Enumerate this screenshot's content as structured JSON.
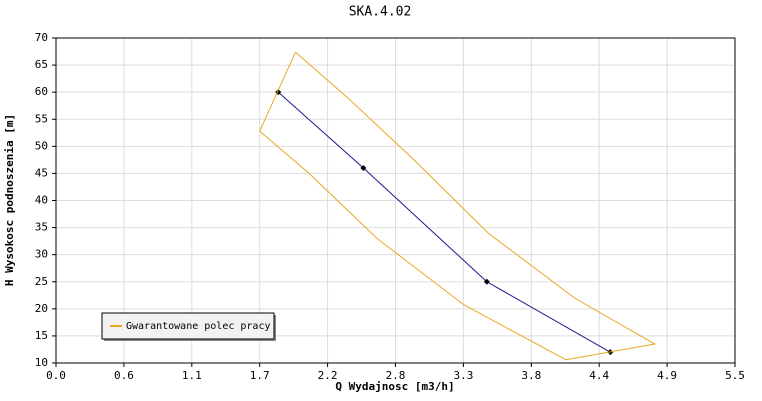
{
  "chart_data": {
    "type": "line",
    "title": "SKA.4.02",
    "x_label": "Q Wydajnosc [m3/h]",
    "y_label": "H Wysokosc podnoszenia [m]",
    "xlim": [
      0,
      5.5
    ],
    "xticks": [
      {
        "value": 0,
        "label": "0.0"
      },
      {
        "value": 0.55,
        "label": "0.6"
      },
      1.1,
      {
        "value": 1.65,
        "label": "1.7"
      },
      2.2,
      {
        "value": 2.75,
        "label": "2.8"
      },
      3.3,
      {
        "value": 3.85,
        "label": "3.8"
      },
      4.4,
      {
        "value": 4.95,
        "label": "4.9"
      },
      5.5
    ],
    "ylim": [
      10,
      70
    ],
    "yticks": [
      10,
      15,
      20,
      25,
      30,
      35,
      40,
      45,
      50,
      55,
      60,
      65,
      70
    ],
    "grid": true,
    "legend": "lower left",
    "series": [
      {
        "color": "#1a1a8c",
        "markers": true,
        "x": [
          1.8,
          2.49,
          3.49,
          4.49
        ],
        "values": [
          60,
          46,
          25,
          12
        ]
      },
      {
        "name": "Gwarantowane polec pracy",
        "color": "#e8a820",
        "markers": false,
        "x": [
          1.94,
          2.38,
          2.9,
          3.5,
          4.2,
          4.85,
          4.13,
          3.3,
          2.6,
          2.05,
          1.65,
          1.94
        ],
        "values": [
          67.4,
          58.6,
          47.5,
          34,
          22,
          13.5,
          10.6,
          20.8,
          33,
          45,
          52.8,
          67.4
        ]
      }
    ]
  }
}
